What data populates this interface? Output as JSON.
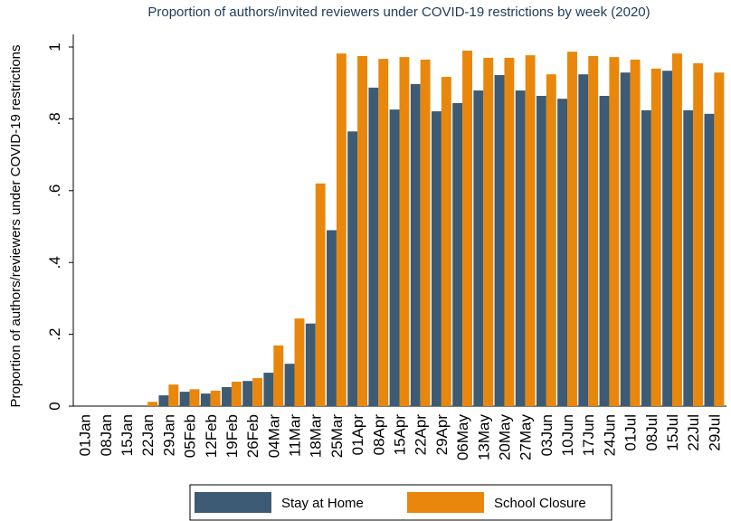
{
  "chart_data": {
    "type": "bar",
    "title": "Proportion of authors/invited reviewers under COVID-19 restrictions by week (2020)",
    "y_label": "Proportion of authors/reviewers under COVID-19 restrictions",
    "categories": [
      "01Jan",
      "08Jan",
      "15Jan",
      "22Jan",
      "29Jan",
      "05Feb",
      "12Feb",
      "19Feb",
      "26Feb",
      "04Mar",
      "11Mar",
      "18Mar",
      "25Mar",
      "01Apr",
      "08Apr",
      "15Apr",
      "22Apr",
      "29Apr",
      "06May",
      "13May",
      "20May",
      "27May",
      "03Jun",
      "10Jun",
      "17Jun",
      "24Jun",
      "01Jul",
      "08Jul",
      "15Jul",
      "22Jul",
      "29Jul"
    ],
    "series": [
      {
        "name": "Stay at Home",
        "color": "#3d5b74",
        "values": [
          0,
          0,
          0,
          0,
          0.03,
          0.04,
          0.035,
          0.053,
          0.07,
          0.093,
          0.118,
          0.23,
          0.49,
          0.765,
          0.887,
          0.826,
          0.897,
          0.821,
          0.844,
          0.879,
          0.922,
          0.879,
          0.864,
          0.856,
          0.924,
          0.864,
          0.929,
          0.824,
          0.934,
          0.824,
          0.814
        ]
      },
      {
        "name": "School Closure",
        "color": "#e8870b",
        "values": [
          0,
          0,
          0,
          0.012,
          0.06,
          0.047,
          0.043,
          0.068,
          0.078,
          0.169,
          0.244,
          0.62,
          0.982,
          0.975,
          0.967,
          0.972,
          0.965,
          0.917,
          0.99,
          0.97,
          0.97,
          0.977,
          0.924,
          0.987,
          0.975,
          0.972,
          0.965,
          0.94,
          0.982,
          0.955,
          0.929
        ]
      }
    ],
    "ylim": [
      0,
      1
    ],
    "yticks": [
      0,
      {
        "value": 0.2,
        "label": ".2"
      },
      {
        "value": 0.4,
        "label": ".4"
      },
      {
        "value": 0.6,
        "label": ".6"
      },
      {
        "value": 0.8,
        "label": ".8"
      },
      1
    ],
    "legend": "bottom"
  }
}
